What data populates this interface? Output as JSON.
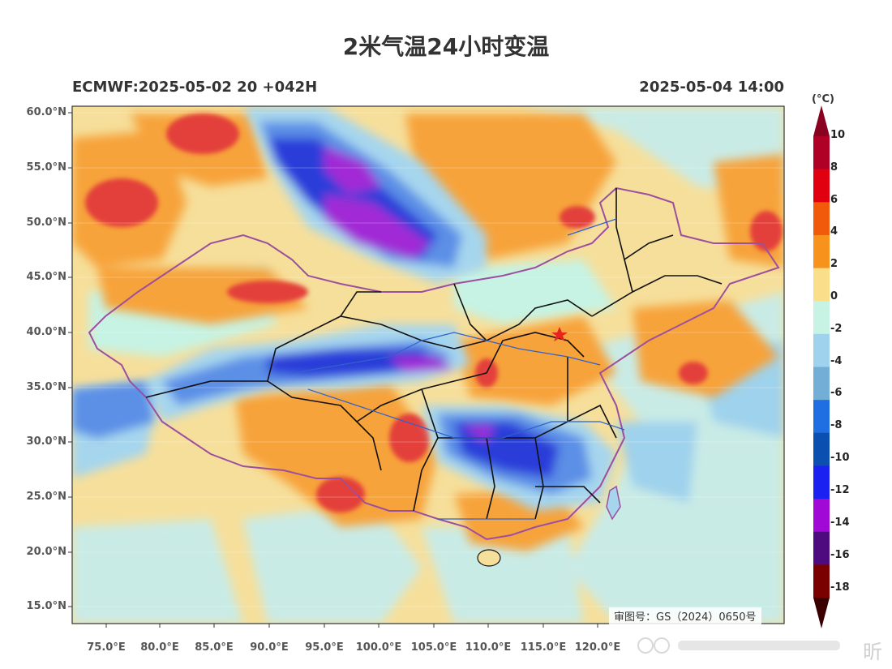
{
  "header": {
    "title": "2米气温24小时变温",
    "model_run": "ECMWF:2025-05-02 20 +042H",
    "valid_time": "2025-05-04 14:00"
  },
  "axes": {
    "lat_labels": [
      "60.0°N",
      "55.0°N",
      "50.0°N",
      "45.0°N",
      "40.0°N",
      "35.0°N",
      "30.0°N",
      "25.0°N",
      "20.0°N",
      "15.0°N"
    ],
    "lon_labels": [
      "75.0°E",
      "80.0°E",
      "85.0°E",
      "90.0°E",
      "95.0°E",
      "100.0°E",
      "105.0°E",
      "110.0°E",
      "115.0°E",
      "120.0°E"
    ]
  },
  "colorbar": {
    "unit": "(°C)",
    "labels": [
      "10",
      "8",
      "6",
      "4",
      "2",
      "0",
      "-2",
      "-4",
      "-6",
      "-8",
      "-10",
      "-12",
      "-14",
      "-16",
      "-18"
    ],
    "colors": [
      "#b00026",
      "#e00010",
      "#f05a0a",
      "#f7921c",
      "#fbde8a",
      "#c6f3e4",
      "#9fd2ec",
      "#72aed6",
      "#1f6fe3",
      "#0b4fb0",
      "#1b21f0",
      "#a10ad6",
      "#4e0b7f",
      "#7a0000"
    ],
    "top_color": "#8a0020",
    "bottom_color": "#3a0000"
  },
  "map": {
    "field_colors": {
      "land_base": "#f6df9b",
      "ocean_base": "#c9ebe6",
      "warm_orange": "#f7a33a",
      "warm_red": "#e3413a",
      "cool_light": "#a6d6ee",
      "cool_mid": "#5b8fe6",
      "cool_deep": "#2a3cd9",
      "cool_purple": "#a12ad6",
      "border_black": "#111111",
      "border_purple": "#9c4f9e",
      "river": "#2f62c9",
      "capital_star": "#e8231b"
    },
    "approval_text": "审图号：GS（2024）0650号"
  },
  "watermark": {
    "text": "昕"
  }
}
